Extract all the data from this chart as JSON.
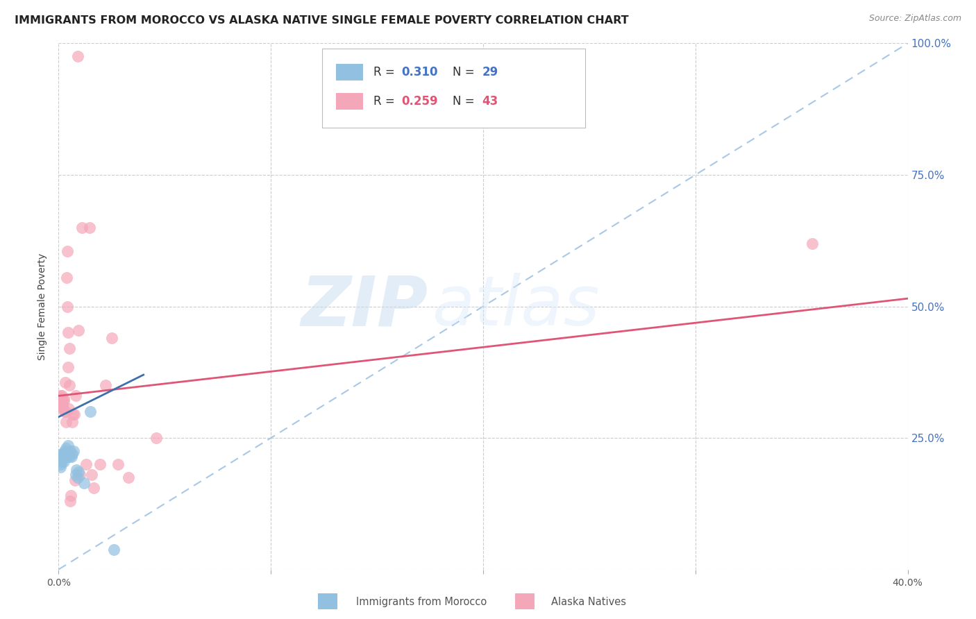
{
  "title": "IMMIGRANTS FROM MOROCCO VS ALASKA NATIVE SINGLE FEMALE POVERTY CORRELATION CHART",
  "source": "Source: ZipAtlas.com",
  "ylabel": "Single Female Poverty",
  "legend_label1": "Immigrants from Morocco",
  "legend_label2": "Alaska Natives",
  "R1": 0.31,
  "N1": 29,
  "R2": 0.259,
  "N2": 43,
  "xlim": [
    0,
    0.4
  ],
  "ylim": [
    0,
    1.0
  ],
  "xticks": [
    0.0,
    0.1,
    0.2,
    0.3,
    0.4
  ],
  "xtick_labels": [
    "0.0%",
    "",
    "",
    "",
    "40.0%"
  ],
  "yticks": [
    0.0,
    0.25,
    0.5,
    0.75,
    1.0
  ],
  "ytick_labels": [
    "",
    "25.0%",
    "50.0%",
    "75.0%",
    "100.0%"
  ],
  "color_blue": "#92c0e0",
  "color_pink": "#f4a7b9",
  "color_blue_line": "#3d6fad",
  "color_pink_line": "#e05575",
  "color_dashed_line": "#a8c8e8",
  "background_color": "#ffffff",
  "watermark_zip": "ZIP",
  "watermark_atlas": "atlas",
  "blue_dots": [
    [
      0.0008,
      0.195
    ],
    [
      0.001,
      0.2
    ],
    [
      0.0012,
      0.21
    ],
    [
      0.0014,
      0.22
    ],
    [
      0.0016,
      0.205
    ],
    [
      0.0018,
      0.215
    ],
    [
      0.002,
      0.21
    ],
    [
      0.0022,
      0.22
    ],
    [
      0.0024,
      0.205
    ],
    [
      0.0026,
      0.215
    ],
    [
      0.0028,
      0.225
    ],
    [
      0.003,
      0.215
    ],
    [
      0.0032,
      0.22
    ],
    [
      0.0035,
      0.23
    ],
    [
      0.0038,
      0.215
    ],
    [
      0.0042,
      0.22
    ],
    [
      0.0045,
      0.235
    ],
    [
      0.005,
      0.215
    ],
    [
      0.0055,
      0.225
    ],
    [
      0.006,
      0.215
    ],
    [
      0.0065,
      0.22
    ],
    [
      0.007,
      0.225
    ],
    [
      0.008,
      0.18
    ],
    [
      0.0085,
      0.19
    ],
    [
      0.009,
      0.175
    ],
    [
      0.0095,
      0.185
    ],
    [
      0.012,
      0.165
    ],
    [
      0.015,
      0.3
    ],
    [
      0.026,
      0.038
    ]
  ],
  "pink_dots": [
    [
      0.0008,
      0.315
    ],
    [
      0.001,
      0.33
    ],
    [
      0.0012,
      0.325
    ],
    [
      0.0014,
      0.33
    ],
    [
      0.0016,
      0.31
    ],
    [
      0.0018,
      0.32
    ],
    [
      0.002,
      0.31
    ],
    [
      0.0022,
      0.305
    ],
    [
      0.0024,
      0.32
    ],
    [
      0.0026,
      0.325
    ],
    [
      0.0028,
      0.3
    ],
    [
      0.003,
      0.355
    ],
    [
      0.0032,
      0.3
    ],
    [
      0.0035,
      0.28
    ],
    [
      0.0038,
      0.555
    ],
    [
      0.004,
      0.5
    ],
    [
      0.0042,
      0.605
    ],
    [
      0.0044,
      0.45
    ],
    [
      0.0046,
      0.385
    ],
    [
      0.0048,
      0.305
    ],
    [
      0.005,
      0.42
    ],
    [
      0.0052,
      0.35
    ],
    [
      0.0055,
      0.13
    ],
    [
      0.0058,
      0.14
    ],
    [
      0.0065,
      0.28
    ],
    [
      0.0068,
      0.295
    ],
    [
      0.0075,
      0.295
    ],
    [
      0.0078,
      0.17
    ],
    [
      0.0082,
      0.33
    ],
    [
      0.009,
      0.975
    ],
    [
      0.0095,
      0.455
    ],
    [
      0.01,
      0.18
    ],
    [
      0.011,
      0.65
    ],
    [
      0.013,
      0.2
    ],
    [
      0.0145,
      0.65
    ],
    [
      0.0155,
      0.18
    ],
    [
      0.0165,
      0.155
    ],
    [
      0.0195,
      0.2
    ],
    [
      0.022,
      0.35
    ],
    [
      0.025,
      0.44
    ],
    [
      0.028,
      0.2
    ],
    [
      0.033,
      0.175
    ],
    [
      0.046,
      0.25
    ],
    [
      0.355,
      0.62
    ]
  ],
  "blue_line_x": [
    0.0,
    0.04
  ],
  "blue_line_y": [
    0.29,
    0.37
  ],
  "pink_line_x": [
    0.0,
    0.4
  ],
  "pink_line_y": [
    0.33,
    0.515
  ],
  "dashed_line_x": [
    0.0,
    0.4
  ],
  "dashed_line_y": [
    0.0,
    1.0
  ],
  "grid_color": "#cccccc",
  "title_fontsize": 11.5,
  "axis_label_fontsize": 10,
  "tick_fontsize": 10,
  "right_tick_color": "#4472c4",
  "legend_R_color_blue": "#4472c4",
  "legend_N_color_blue": "#4472c4",
  "legend_R_color_pink": "#e05575",
  "legend_N_color_pink": "#e05575"
}
